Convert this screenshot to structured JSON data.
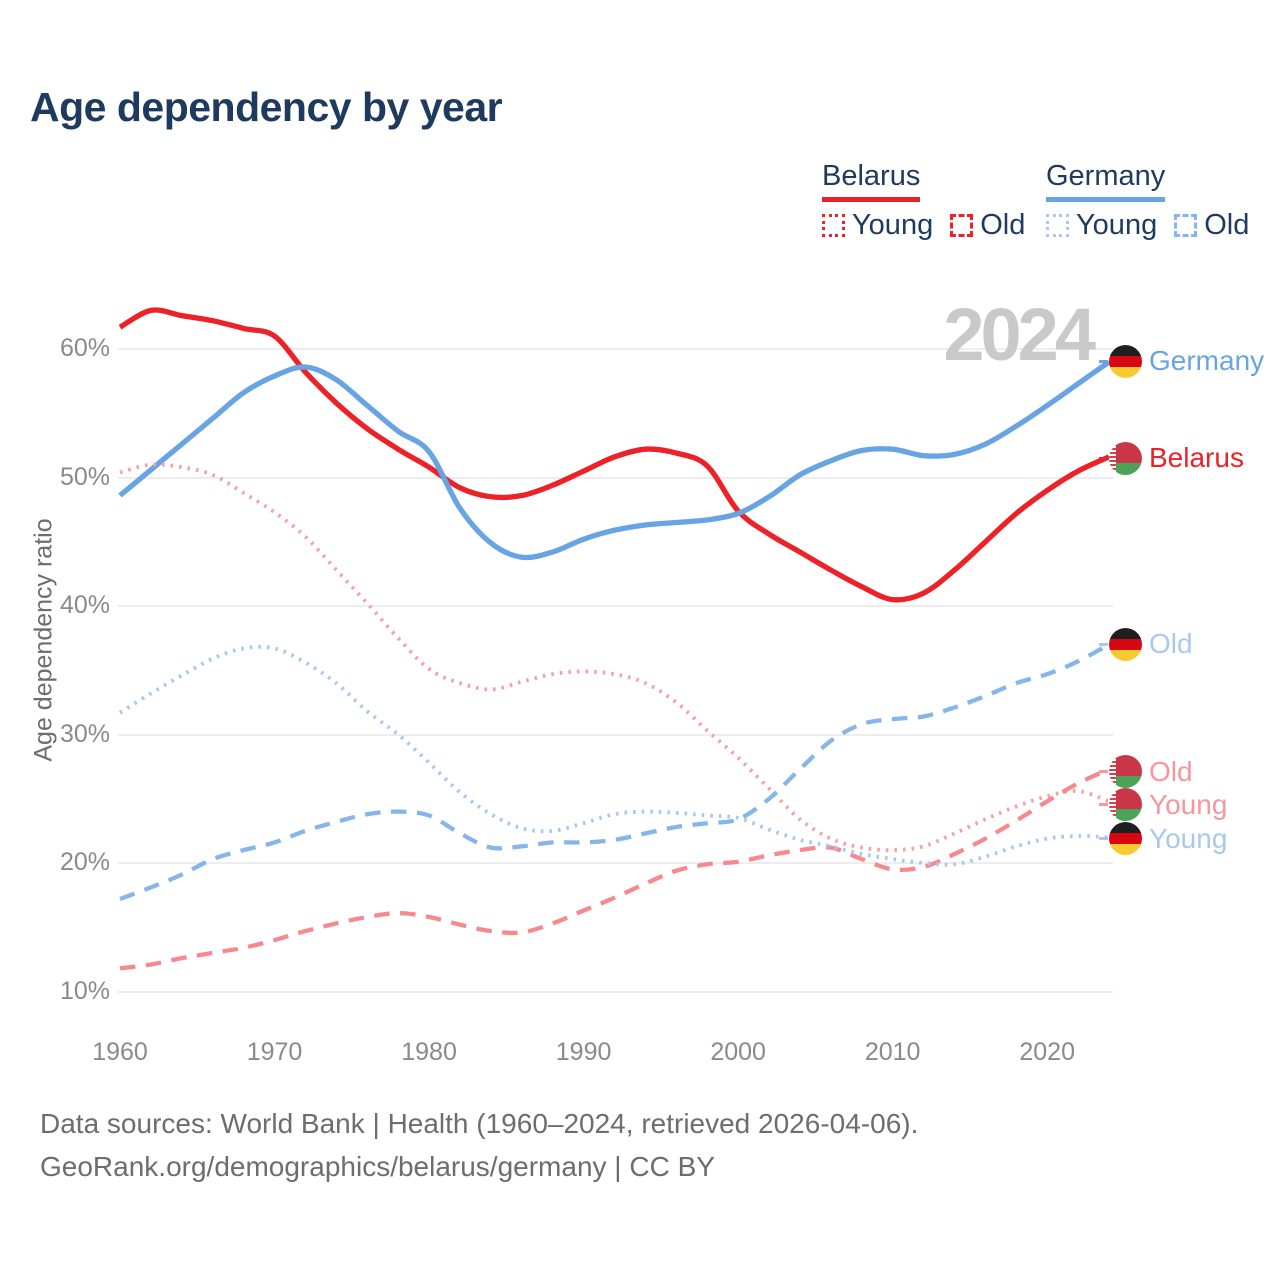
{
  "title": "Age dependency by year",
  "watermark": "2024",
  "legend": {
    "belarus": {
      "label": "Belarus",
      "young_label": "Young",
      "old_label": "Old"
    },
    "germany": {
      "label": "Germany",
      "young_label": "Young",
      "old_label": "Old"
    }
  },
  "y_axis": {
    "title": "Age dependency ratio",
    "ticks": [
      "10%",
      "20%",
      "30%",
      "40%",
      "50%",
      "60%"
    ]
  },
  "x_axis": {
    "ticks": [
      "1960",
      "1970",
      "1980",
      "1990",
      "2000",
      "2010",
      "2020"
    ]
  },
  "footer": {
    "line1": "Data sources: World Bank | Health (1960–2024, retrieved 2026-04-06).",
    "line2": "GeoRank.org/demographics/belarus/germany | CC BY"
  },
  "colors": {
    "title_navy": "#1e3a5f",
    "belarus_red": "#ed2128",
    "germany_blue": "#68a4e4",
    "belarus_young_pink": "#f4a2a8",
    "belarus_old_pink": "#f7898e",
    "germany_young_lightblue": "#a8c8ee",
    "germany_old_lightblue": "#85b5e9",
    "gridline": "#ededed",
    "tick_text": "#8a8a8a",
    "watermark_gray": "#c9c9c9"
  },
  "chart_data": {
    "type": "line",
    "title": "Age dependency by year",
    "ylabel": "Age dependency ratio",
    "grid": "horizontal",
    "x_range": [
      1960,
      2024
    ],
    "ylim_percent": [
      10,
      63
    ],
    "y_ticks_percent": [
      10,
      20,
      30,
      40,
      50,
      60
    ],
    "x_ticks_years": [
      1960,
      1970,
      1980,
      1990,
      2000,
      2010,
      2020
    ],
    "x": [
      1960,
      1962,
      1964,
      1966,
      1968,
      1970,
      1972,
      1974,
      1976,
      1978,
      1980,
      1982,
      1984,
      1986,
      1988,
      1990,
      1992,
      1994,
      1996,
      1998,
      2000,
      2002,
      2004,
      2006,
      2008,
      2010,
      2012,
      2014,
      2016,
      2018,
      2020,
      2022,
      2024
    ],
    "series": [
      {
        "name": "Belarus total",
        "style": "solid",
        "color": "#ed2128",
        "values": [
          61.7,
          63.0,
          62.6,
          62.2,
          61.6,
          61.0,
          58.2,
          55.8,
          53.8,
          52.2,
          50.8,
          49.2,
          48.5,
          48.6,
          49.4,
          50.5,
          51.6,
          52.2,
          51.9,
          50.9,
          47.4,
          45.6,
          44.2,
          42.8,
          41.5,
          40.5,
          41.0,
          42.8,
          45.0,
          47.2,
          49.0,
          50.5,
          51.6
        ]
      },
      {
        "name": "Germany total",
        "style": "solid",
        "color": "#68a4e4",
        "values": [
          48.6,
          50.6,
          52.6,
          54.6,
          56.6,
          57.9,
          58.6,
          57.6,
          55.6,
          53.6,
          52.0,
          47.6,
          44.9,
          43.8,
          44.2,
          45.2,
          45.9,
          46.3,
          46.5,
          46.7,
          47.2,
          48.5,
          50.2,
          51.3,
          52.1,
          52.2,
          51.7,
          51.8,
          52.6,
          54.0,
          55.6,
          57.3,
          59.0
        ]
      },
      {
        "name": "Belarus Young",
        "style": "dotted",
        "color": "#f4a2a8",
        "values": [
          50.4,
          51.0,
          50.8,
          50.2,
          48.8,
          47.3,
          45.4,
          42.8,
          40.2,
          37.5,
          35.1,
          34.0,
          33.5,
          34.1,
          34.7,
          34.9,
          34.7,
          34.0,
          32.5,
          30.3,
          28.2,
          25.8,
          23.4,
          21.9,
          21.2,
          21.0,
          21.3,
          22.3,
          23.4,
          24.4,
          25.2,
          25.6,
          24.8
        ]
      },
      {
        "name": "Belarus Old",
        "style": "dashed",
        "color": "#f7898e",
        "values": [
          11.8,
          12.1,
          12.6,
          13.0,
          13.4,
          14.0,
          14.7,
          15.3,
          15.8,
          16.1,
          15.8,
          15.2,
          14.7,
          14.6,
          15.3,
          16.3,
          17.3,
          18.4,
          19.4,
          19.9,
          20.1,
          20.6,
          21.0,
          21.2,
          20.3,
          19.5,
          19.7,
          20.7,
          21.9,
          23.3,
          24.8,
          26.2,
          27.3
        ]
      },
      {
        "name": "Germany Young",
        "style": "dotted",
        "color": "#a8c8ee",
        "values": [
          31.7,
          33.2,
          34.6,
          35.9,
          36.7,
          36.7,
          35.6,
          34.0,
          31.8,
          30.0,
          27.8,
          25.5,
          23.8,
          22.7,
          22.5,
          23.1,
          23.8,
          24.0,
          23.9,
          23.7,
          23.5,
          22.6,
          21.8,
          21.3,
          20.7,
          20.3,
          20.0,
          19.9,
          20.5,
          21.3,
          21.9,
          22.1,
          22.0
        ]
      },
      {
        "name": "Germany Old",
        "style": "dashed",
        "color": "#85b5e9",
        "values": [
          17.2,
          18.1,
          19.1,
          20.3,
          21.0,
          21.6,
          22.5,
          23.2,
          23.8,
          24.0,
          23.7,
          22.3,
          21.2,
          21.3,
          21.6,
          21.6,
          21.8,
          22.3,
          22.8,
          23.1,
          23.4,
          25.0,
          27.3,
          29.5,
          30.8,
          31.2,
          31.4,
          32.1,
          33.0,
          34.0,
          34.7,
          35.7,
          37.0
        ]
      }
    ],
    "end_labels": [
      {
        "text": "Germany",
        "flag": "de",
        "value": 59.0,
        "color": "#68a4e4"
      },
      {
        "text": "Belarus",
        "flag": "by",
        "value": 51.6,
        "color": "#ed2128"
      },
      {
        "text": "Old",
        "flag": "de",
        "value": 37.0,
        "color": "#a8c8ee"
      },
      {
        "text": "Old",
        "flag": "by",
        "value": 27.3,
        "color": "#f4989d"
      },
      {
        "text": "Young",
        "flag": "by",
        "value": 24.8,
        "color": "#f4989d"
      },
      {
        "text": "Young",
        "flag": "de",
        "value": 22.0,
        "color": "#a8c8ee"
      }
    ]
  }
}
